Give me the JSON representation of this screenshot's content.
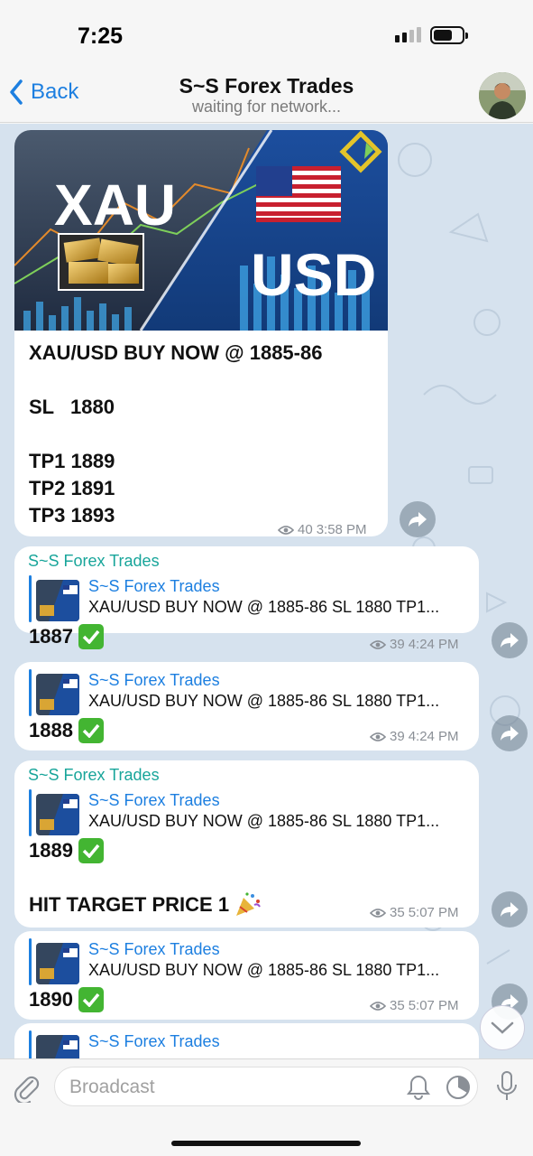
{
  "status_bar": {
    "time": "7:25"
  },
  "nav": {
    "back_label": "Back",
    "title": "S~S Forex Trades",
    "subtitle": "waiting for network..."
  },
  "post": {
    "image_labels": {
      "left": "XAU",
      "right": "USD"
    },
    "lines": [
      "XAU/USD BUY NOW @ 1885-86",
      "SL   1880",
      "TP1 1889",
      "TP2 1891",
      "TP3 1893"
    ],
    "views": "40",
    "time": "3:58 PM"
  },
  "messages": [
    {
      "sender": "S~S Forex Trades",
      "reply_name": "S~S Forex Trades",
      "reply_text": "XAU/USD BUY NOW @ 1885-86 SL 1880 TP1...",
      "value": "1887",
      "views": "39",
      "time": "4:24 PM"
    },
    {
      "sender": "",
      "reply_name": "S~S Forex Trades",
      "reply_text": "XAU/USD BUY NOW @ 1885-86 SL 1880 TP1...",
      "value": "1888",
      "views": "39",
      "time": "4:24 PM"
    },
    {
      "sender": "S~S Forex Trades",
      "reply_name": "S~S Forex Trades",
      "reply_text": "XAU/USD BUY NOW @ 1885-86 SL 1880 TP1...",
      "value": "1889",
      "extra": "HIT TARGET PRICE 1",
      "views": "35",
      "time": "5:07 PM"
    },
    {
      "sender": "",
      "reply_name": "S~S Forex Trades",
      "reply_text": "XAU/USD BUY NOW @ 1885-86 SL 1880 TP1...",
      "value": "1890",
      "views": "35",
      "time": "5:07 PM"
    },
    {
      "sender": "",
      "reply_name": "S~S Forex Trades",
      "reply_text": "",
      "value": "",
      "views": "",
      "time": ""
    }
  ],
  "input": {
    "placeholder": "Broadcast"
  },
  "icons": {
    "check": "check-mark-icon",
    "forward": "forward-icon",
    "eye": "eye-icon",
    "party": "party-popper-icon"
  },
  "colors": {
    "accent": "#1d7fe0",
    "sender": "#18a59a",
    "chat_bg": "#d6e2ee",
    "check": "#43b532"
  }
}
